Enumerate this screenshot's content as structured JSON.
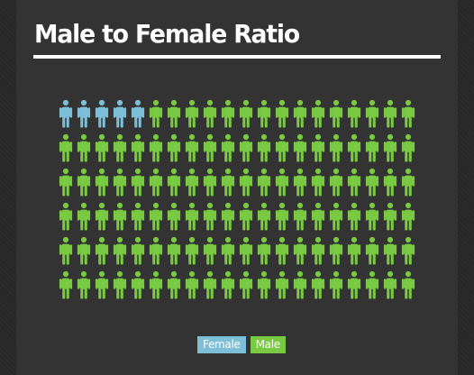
{
  "chart_data": {
    "type": "pictogram",
    "title": "Male to Female Ratio",
    "total_icons": 120,
    "columns": 20,
    "rows": 6,
    "series": [
      {
        "name": "Female",
        "count": 5,
        "color": "#7cbfd6"
      },
      {
        "name": "Male",
        "count": 115,
        "color": "#7ac943"
      }
    ],
    "legend_placement": "bottom-center"
  }
}
